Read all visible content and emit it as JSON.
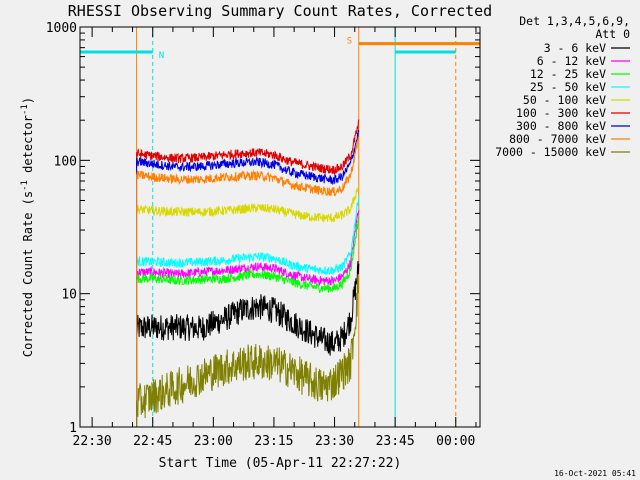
{
  "chart_data": {
    "type": "line",
    "title": "RHESSI Observing Summary Count Rates, Corrected",
    "xlabel": "Start Time (05-Apr-11 22:27:22)",
    "ylabel_main": "Corrected Count Rate (s",
    "ylabel_sup1": "-1",
    "ylabel_mid": " detector",
    "ylabel_sup2": "-1",
    "ylabel_end": ")",
    "y_scale": "log",
    "ylim": [
      1,
      1000
    ],
    "xlim_minutes_after_22_27": [
      0,
      99
    ],
    "x_ticks": [
      "22:30",
      "22:45",
      "23:00",
      "23:15",
      "23:30",
      "23:45",
      "00:00"
    ],
    "x_tick_minutes": [
      3,
      18,
      33,
      48,
      63,
      78,
      93
    ],
    "y_ticks": [
      "1",
      "10",
      "100",
      "1000"
    ],
    "y_tick_values": [
      1,
      10,
      100,
      1000
    ],
    "legend_position": "top-right",
    "legend_header": [
      "Det 1,3,4,5,6,9,",
      "Att 0"
    ],
    "series": [
      {
        "name": "3 - 6 keV",
        "color": "#000000",
        "x": [
          14,
          18,
          24,
          30,
          36,
          40,
          44,
          48,
          52,
          56,
          60,
          63,
          65,
          67,
          69
        ],
        "y": [
          5.5,
          5.6,
          5.6,
          5.5,
          6.5,
          7.5,
          8.0,
          7.5,
          6.3,
          5.3,
          4.5,
          4.2,
          4.7,
          6.5,
          16
        ]
      },
      {
        "name": "6 - 12 keV",
        "color": "#ff00ff",
        "x": [
          14,
          18,
          24,
          30,
          36,
          40,
          44,
          48,
          52,
          56,
          60,
          63,
          65,
          67,
          69
        ],
        "y": [
          14.5,
          14.5,
          14,
          14.5,
          15,
          15.5,
          16,
          15.5,
          14,
          13,
          12.5,
          12.5,
          13.5,
          17,
          45
        ]
      },
      {
        "name": "12 - 25 keV",
        "color": "#00ff00",
        "x": [
          14,
          18,
          24,
          30,
          36,
          40,
          44,
          48,
          52,
          56,
          60,
          63,
          65,
          67,
          69
        ],
        "y": [
          13,
          13,
          12.5,
          12.8,
          13,
          13.5,
          14,
          13.5,
          12.3,
          11.5,
          11,
          11,
          12,
          15,
          38
        ]
      },
      {
        "name": "25 - 50 keV",
        "color": "#00ffff",
        "x": [
          14,
          18,
          24,
          30,
          36,
          40,
          44,
          48,
          52,
          56,
          60,
          63,
          65,
          67,
          69
        ],
        "y": [
          17.5,
          17.3,
          17,
          17.3,
          17.8,
          18.5,
          19,
          18.5,
          16.5,
          15.5,
          15,
          15,
          16,
          20,
          55
        ]
      },
      {
        "name": "50 - 100 keV",
        "color": "#d8d800",
        "x": [
          14,
          18,
          24,
          30,
          36,
          40,
          44,
          48,
          52,
          56,
          60,
          63,
          65,
          67,
          69
        ],
        "y": [
          43,
          42,
          41,
          41,
          42,
          43,
          44,
          43,
          40,
          38,
          37,
          37,
          39,
          43,
          65
        ]
      },
      {
        "name": "100 - 300 keV",
        "color": "#e00000",
        "x": [
          14,
          18,
          24,
          30,
          36,
          40,
          44,
          48,
          52,
          56,
          60,
          63,
          65,
          67,
          69
        ],
        "y": [
          112,
          108,
          103,
          105,
          110,
          113,
          114,
          110,
          98,
          92,
          87,
          85,
          90,
          110,
          190
        ]
      },
      {
        "name": "300 - 800 keV",
        "color": "#0000e0",
        "x": [
          14,
          18,
          24,
          30,
          36,
          40,
          44,
          48,
          52,
          56,
          60,
          63,
          65,
          67,
          69
        ],
        "y": [
          98,
          94,
          89,
          90,
          94,
          96,
          97,
          93,
          82,
          77,
          73,
          71,
          76,
          95,
          165
        ]
      },
      {
        "name": "800 - 7000 keV",
        "color": "#ff8000",
        "x": [
          14,
          18,
          24,
          30,
          36,
          40,
          44,
          48,
          52,
          56,
          60,
          63,
          65,
          67,
          69
        ],
        "y": [
          78,
          75,
          72,
          72,
          75,
          76,
          77,
          74,
          66,
          62,
          59,
          58,
          62,
          78,
          150
        ]
      },
      {
        "name": "7000 - 15000 keV",
        "color": "#808000",
        "x": [
          14,
          18,
          24,
          30,
          36,
          40,
          44,
          48,
          52,
          56,
          60,
          63,
          65,
          67,
          69
        ],
        "y": [
          1.5,
          1.7,
          2.0,
          2.4,
          2.8,
          3.0,
          3.1,
          3.0,
          2.7,
          2.3,
          2.0,
          2.2,
          2.6,
          3.0,
          12
        ]
      }
    ],
    "markers": [
      {
        "kind": "night",
        "label": "N",
        "color": "#00e0e0",
        "y": 650,
        "segments": [
          [
            0,
            18
          ],
          [
            78,
            93
          ]
        ]
      },
      {
        "kind": "saa",
        "label": "S",
        "color": "#ff8000",
        "y": 750,
        "segments": [
          [
            69,
            99
          ]
        ]
      }
    ],
    "vertical_lines": [
      {
        "x": 0,
        "color": "#00e0e0",
        "style": "solid"
      },
      {
        "x": 14,
        "color": "#ff8000",
        "style": "solid"
      },
      {
        "x": 18,
        "color": "#00e0e0",
        "style": "dashed"
      },
      {
        "x": 69,
        "color": "#ff8000",
        "style": "solid"
      },
      {
        "x": 78,
        "color": "#00e0e0",
        "style": "solid"
      },
      {
        "x": 93,
        "color": "#ff8000",
        "style": "dashed"
      }
    ],
    "footer": "16-Oct-2021 05:41"
  }
}
